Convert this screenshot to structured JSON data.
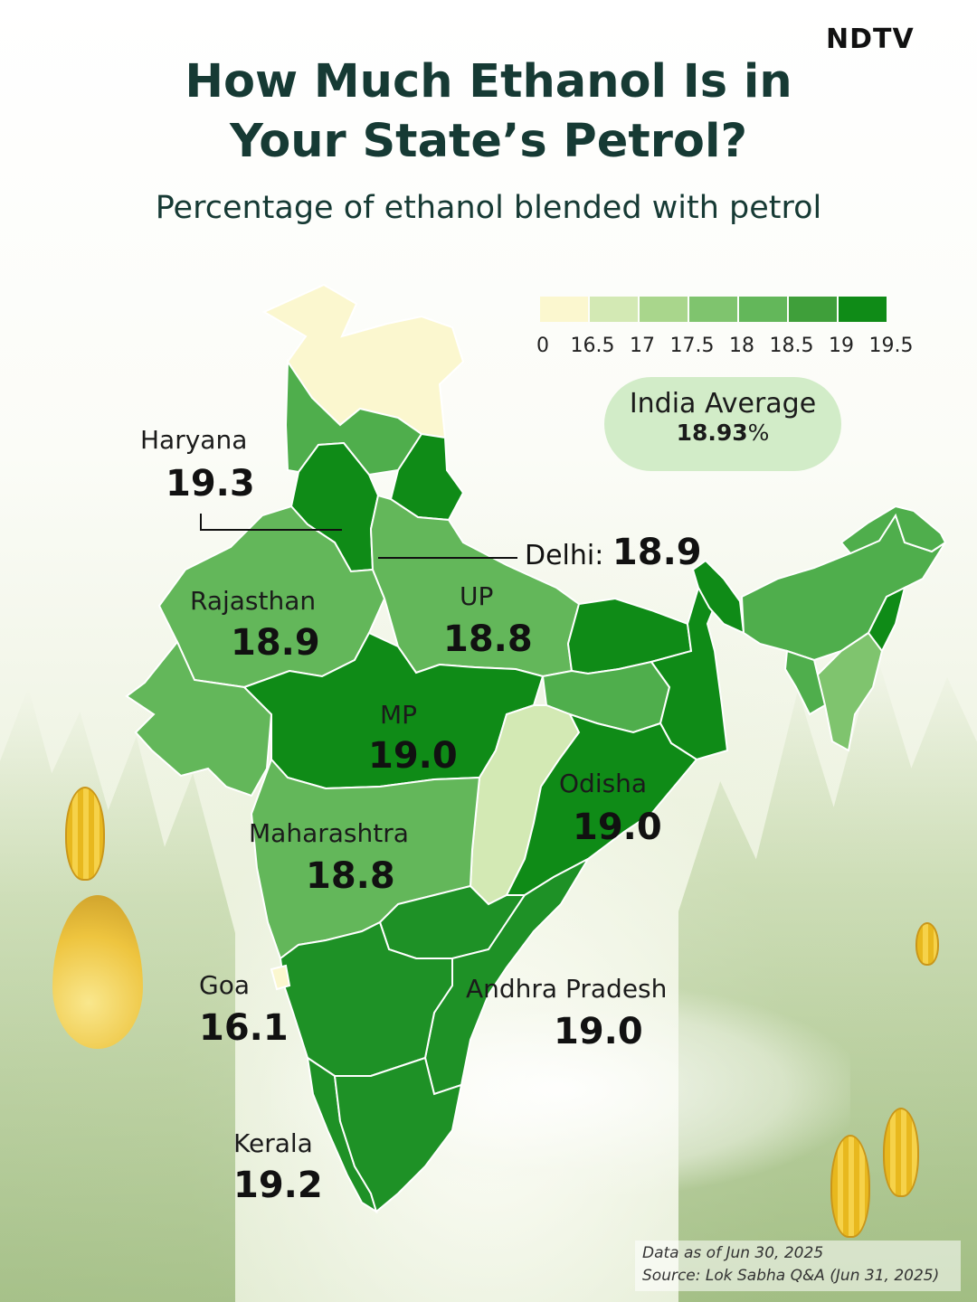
{
  "brand": {
    "logo": "NDTV"
  },
  "header": {
    "title_line1": "How Much Ethanol Is in",
    "title_line2": "Your State’s Petrol?",
    "subtitle": "Percentage of ethanol blended with petrol"
  },
  "legend": {
    "ticks": [
      "0",
      "16.5",
      "17",
      "17.5",
      "18",
      "18.5",
      "19",
      "19.5"
    ],
    "colors": [
      "#fbf7cf",
      "#d3e9b4",
      "#a9d68c",
      "#7fc46e",
      "#63b75a",
      "#3f9f3a",
      "#0f8b17"
    ]
  },
  "average": {
    "label": "India Average",
    "value": "18.93",
    "unit": "%"
  },
  "states": {
    "haryana": {
      "name": "Haryana",
      "value": "19.3"
    },
    "delhi": {
      "name": "Delhi:",
      "value": "18.9"
    },
    "rajasthan": {
      "name": "Rajasthan",
      "value": "18.9"
    },
    "up": {
      "name": "UP",
      "value": "18.8"
    },
    "mp": {
      "name": "MP",
      "value": "19.0"
    },
    "odisha": {
      "name": "Odisha",
      "value": "19.0"
    },
    "maharashtra": {
      "name": "Maharashtra",
      "value": "18.8"
    },
    "goa": {
      "name": "Goa",
      "value": "16.1"
    },
    "andhra": {
      "name": "Andhra Pradesh",
      "value": "19.0"
    },
    "kerala": {
      "name": "Kerala",
      "value": "19.2"
    }
  },
  "footer": {
    "line1": "Data as of Jun 30, 2025",
    "line2": "Source: Lok Sabha Q&A (Jun 31, 2025)"
  }
}
